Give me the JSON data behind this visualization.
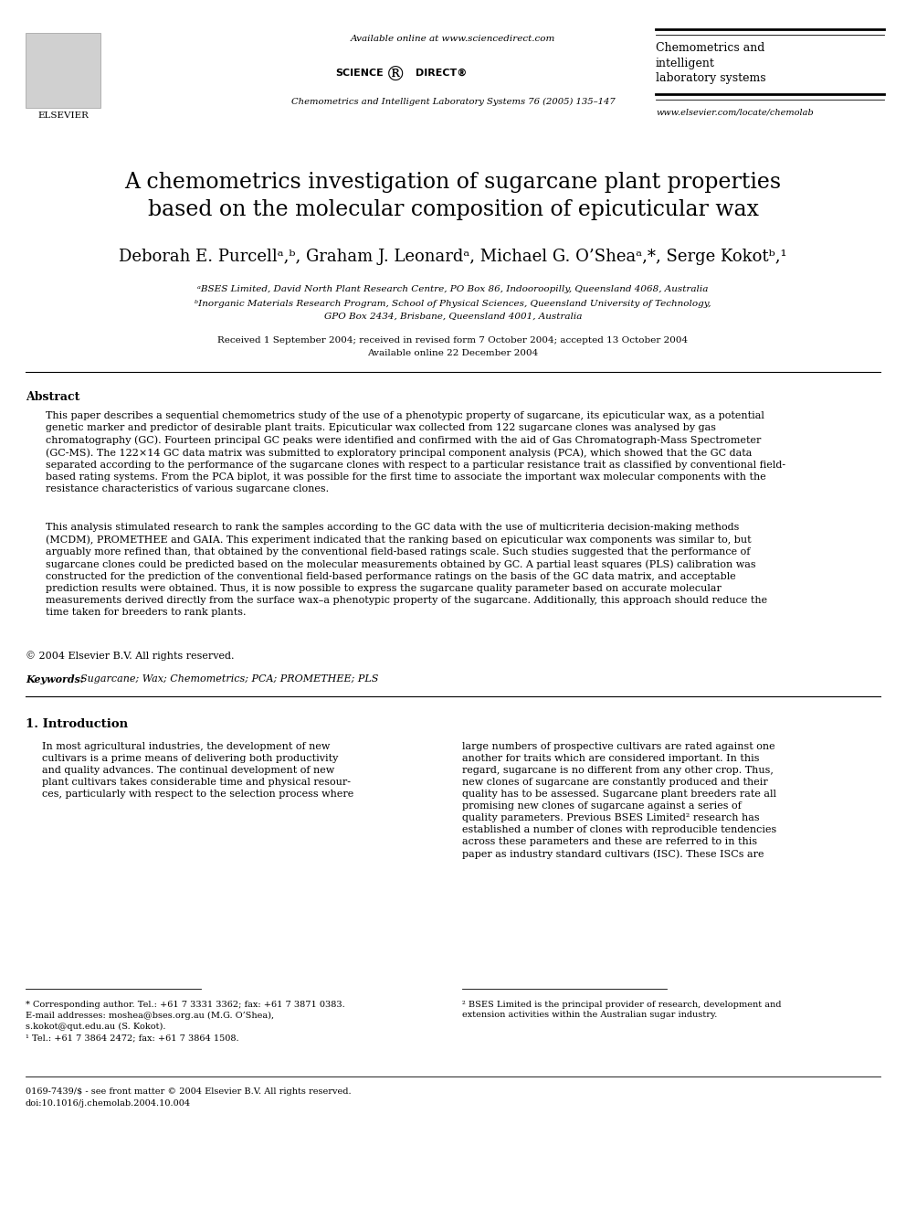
{
  "bg_color": "#ffffff",
  "header_available_online": "Available online at www.sciencedirect.com",
  "header_journal_name": "Chemometrics and Intelligent Laboratory Systems 76 (2005) 135–147",
  "header_journal_short": "Chemometrics and\nintelligent\nlaboratory systems",
  "header_url": "www.elsevier.com/locate/chemolab",
  "title_line1": "A chemometrics investigation of sugarcane plant properties",
  "title_line2": "based on the molecular composition of epicuticular wax",
  "authors": "Deborah E. Purcellᵃ,ᵇ, Graham J. Leonardᵃ, Michael G. O’Sheaᵃ,*, Serge Kokotᵇ,¹",
  "affil_a": "ᵃBSES Limited, David North Plant Research Centre, PO Box 86, Indooroopilly, Queensland 4068, Australia",
  "affil_b": "ᵇInorganic Materials Research Program, School of Physical Sciences, Queensland University of Technology,",
  "affil_b2": "GPO Box 2434, Brisbane, Queensland 4001, Australia",
  "received": "Received 1 September 2004; received in revised form 7 October 2004; accepted 13 October 2004",
  "available_online": "Available online 22 December 2004",
  "abstract_label": "Abstract",
  "abstract_p1": "This paper describes a sequential chemometrics study of the use of a phenotypic property of sugarcane, its epicuticular wax, as a potential\ngenetic marker and predictor of desirable plant traits. Epicuticular wax collected from 122 sugarcane clones was analysed by gas\nchromatography (GC). Fourteen principal GC peaks were identified and confirmed with the aid of Gas Chromatograph-Mass Spectrometer\n(GC-MS). The 122×14 GC data matrix was submitted to exploratory principal component analysis (PCA), which showed that the GC data\nseparated according to the performance of the sugarcane clones with respect to a particular resistance trait as classified by conventional field-\nbased rating systems. From the PCA biplot, it was possible for the first time to associate the important wax molecular components with the\nresistance characteristics of various sugarcane clones.",
  "abstract_p2": "This analysis stimulated research to rank the samples according to the GC data with the use of multicriteria decision-making methods\n(MCDM), PROMETHEE and GAIA. This experiment indicated that the ranking based on epicuticular wax components was similar to, but\narguably more refined than, that obtained by the conventional field-based ratings scale. Such studies suggested that the performance of\nsugarcane clones could be predicted based on the molecular measurements obtained by GC. A partial least squares (PLS) calibration was\nconstructed for the prediction of the conventional field-based performance ratings on the basis of the GC data matrix, and acceptable\nprediction results were obtained. Thus, it is now possible to express the sugarcane quality parameter based on accurate molecular\nmeasurements derived directly from the surface wax–a phenotypic property of the sugarcane. Additionally, this approach should reduce the\ntime taken for breeders to rank plants.",
  "copyright": "© 2004 Elsevier B.V. All rights reserved.",
  "keywords_label": "Keywords:",
  "keywords": "Sugarcane; Wax; Chemometrics; PCA; PROMETHEE; PLS",
  "section1_title": "1. Introduction",
  "intro_col1_p1": "In most agricultural industries, the development of new\ncultivars is a prime means of delivering both productivity\nand quality advances. The continual development of new\nplant cultivars takes considerable time and physical resour-\nces, particularly with respect to the selection process where",
  "intro_col2_p1": "large numbers of prospective cultivars are rated against one\nanother for traits which are considered important. In this\nregard, sugarcane is no different from any other crop. Thus,\nnew clones of sugarcane are constantly produced and their\nquality has to be assessed. Sugarcane plant breeders rate all\npromising new clones of sugarcane against a series of\nquality parameters. Previous BSES Limited² research has\nestablished a number of clones with reproducible tendencies\nacross these parameters and these are referred to in this\npaper as industry standard cultivars (ISC). These ISCs are",
  "footnote_star": "* Corresponding author. Tel.: +61 7 3331 3362; fax: +61 7 3871 0383.",
  "footnote_email": "E-mail addresses: moshea@bses.org.au (M.G. O’Shea),",
  "footnote_email2": "s.kokot@qut.edu.au (S. Kokot).",
  "footnote_1": "¹ Tel.: +61 7 3864 2472; fax: +61 7 3864 1508.",
  "footnote_bottom1": "0169-7439/$ - see front matter © 2004 Elsevier B.V. All rights reserved.",
  "footnote_bottom2": "doi:10.1016/j.chemolab.2004.10.004",
  "footnote_2_text": "² BSES Limited is the principal provider of research, development and\nextension activities within the Australian sugar industry."
}
